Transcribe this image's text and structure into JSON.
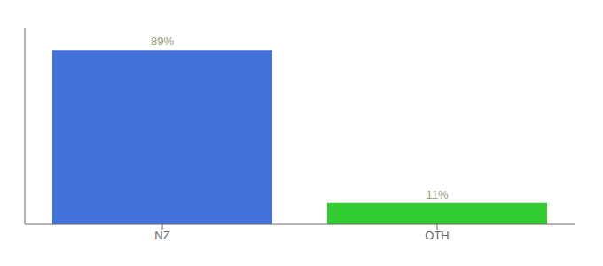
{
  "chart_data": {
    "type": "bar",
    "categories": [
      "NZ",
      "OTH"
    ],
    "values": [
      89,
      11
    ],
    "value_labels": [
      "89%",
      "11%"
    ],
    "colors": [
      "#4472db",
      "#33cc33"
    ],
    "ylim": [
      0,
      100
    ],
    "yticks": [],
    "data_labels": true,
    "tick_labels": "x",
    "grid": false
  }
}
